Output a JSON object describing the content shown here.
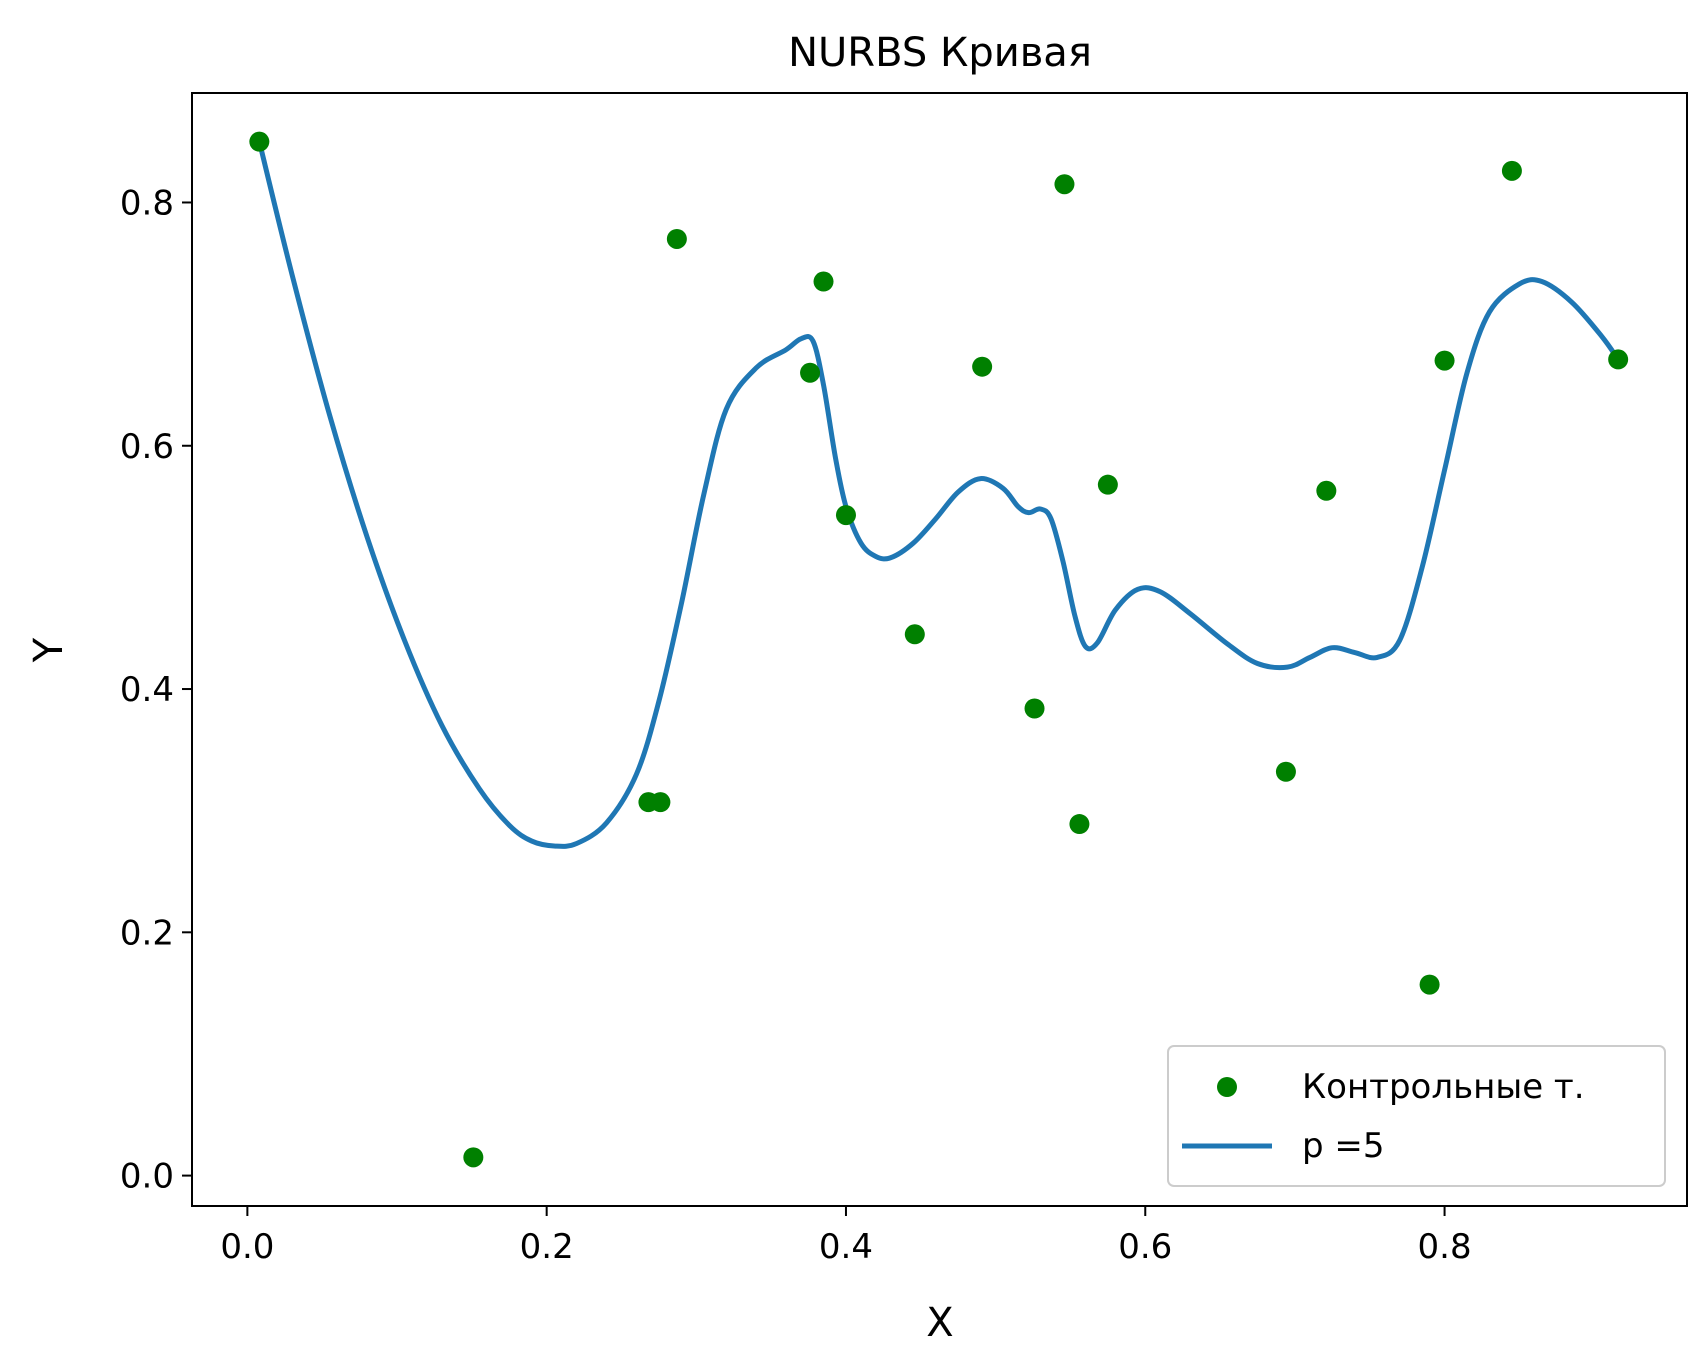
{
  "chart_data": {
    "type": "scatter",
    "title": "NURBS Кривая",
    "xlabel": "X",
    "ylabel": "Y",
    "xlim": [
      -0.037,
      0.962
    ],
    "ylim": [
      -0.025,
      0.89
    ],
    "xticks": [
      0.0,
      0.2,
      0.4,
      0.6,
      0.8
    ],
    "xtick_labels": [
      "0.0",
      "0.2",
      "0.4",
      "0.6",
      "0.8"
    ],
    "yticks": [
      0.0,
      0.2,
      0.4,
      0.6,
      0.8
    ],
    "ytick_labels": [
      "0.0",
      "0.2",
      "0.4",
      "0.6",
      "0.8"
    ],
    "grid": false,
    "legend_position": "lower right",
    "series": [
      {
        "name": "Контрольные т.",
        "kind": "scatter",
        "color": "#008000",
        "points": [
          [
            0.008,
            0.85
          ],
          [
            0.151,
            0.015
          ],
          [
            0.268,
            0.307
          ],
          [
            0.276,
            0.307
          ],
          [
            0.287,
            0.77
          ],
          [
            0.376,
            0.66
          ],
          [
            0.385,
            0.735
          ],
          [
            0.4,
            0.543
          ],
          [
            0.446,
            0.445
          ],
          [
            0.491,
            0.665
          ],
          [
            0.526,
            0.384
          ],
          [
            0.546,
            0.815
          ],
          [
            0.556,
            0.289
          ],
          [
            0.575,
            0.568
          ],
          [
            0.694,
            0.332
          ],
          [
            0.721,
            0.563
          ],
          [
            0.79,
            0.157
          ],
          [
            0.8,
            0.67
          ],
          [
            0.845,
            0.826
          ],
          [
            0.916,
            0.671
          ]
        ]
      },
      {
        "name": "p =5",
        "kind": "line",
        "color": "#1f77b4",
        "points": [
          [
            0.008,
            0.85
          ],
          [
            0.03,
            0.74
          ],
          [
            0.055,
            0.625
          ],
          [
            0.08,
            0.525
          ],
          [
            0.105,
            0.44
          ],
          [
            0.13,
            0.37
          ],
          [
            0.155,
            0.318
          ],
          [
            0.175,
            0.288
          ],
          [
            0.19,
            0.275
          ],
          [
            0.205,
            0.271
          ],
          [
            0.22,
            0.273
          ],
          [
            0.24,
            0.29
          ],
          [
            0.26,
            0.33
          ],
          [
            0.275,
            0.39
          ],
          [
            0.29,
            0.47
          ],
          [
            0.305,
            0.56
          ],
          [
            0.32,
            0.63
          ],
          [
            0.34,
            0.664
          ],
          [
            0.36,
            0.679
          ],
          [
            0.37,
            0.688
          ],
          [
            0.378,
            0.686
          ],
          [
            0.385,
            0.65
          ],
          [
            0.393,
            0.59
          ],
          [
            0.4,
            0.55
          ],
          [
            0.41,
            0.52
          ],
          [
            0.42,
            0.509
          ],
          [
            0.43,
            0.508
          ],
          [
            0.445,
            0.52
          ],
          [
            0.46,
            0.54
          ],
          [
            0.475,
            0.562
          ],
          [
            0.49,
            0.573
          ],
          [
            0.505,
            0.565
          ],
          [
            0.515,
            0.55
          ],
          [
            0.522,
            0.545
          ],
          [
            0.53,
            0.548
          ],
          [
            0.537,
            0.54
          ],
          [
            0.545,
            0.505
          ],
          [
            0.553,
            0.46
          ],
          [
            0.56,
            0.435
          ],
          [
            0.568,
            0.438
          ],
          [
            0.58,
            0.465
          ],
          [
            0.595,
            0.482
          ],
          [
            0.61,
            0.48
          ],
          [
            0.63,
            0.462
          ],
          [
            0.655,
            0.437
          ],
          [
            0.675,
            0.421
          ],
          [
            0.695,
            0.418
          ],
          [
            0.71,
            0.426
          ],
          [
            0.725,
            0.434
          ],
          [
            0.74,
            0.43
          ],
          [
            0.755,
            0.426
          ],
          [
            0.77,
            0.44
          ],
          [
            0.785,
            0.5
          ],
          [
            0.8,
            0.58
          ],
          [
            0.815,
            0.66
          ],
          [
            0.83,
            0.71
          ],
          [
            0.85,
            0.733
          ],
          [
            0.865,
            0.735
          ],
          [
            0.885,
            0.718
          ],
          [
            0.905,
            0.69
          ],
          [
            0.916,
            0.671
          ]
        ]
      }
    ]
  }
}
